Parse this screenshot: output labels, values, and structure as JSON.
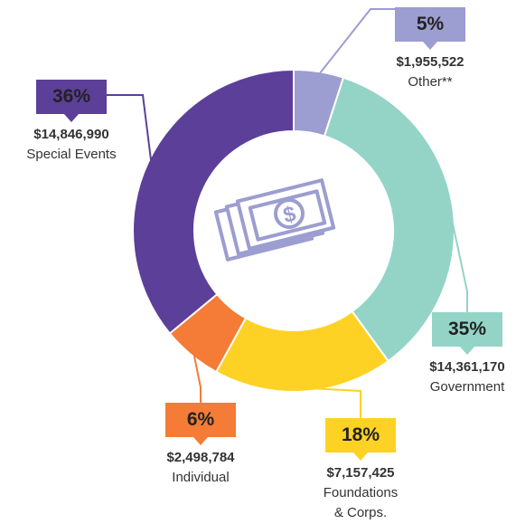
{
  "chart_data": {
    "type": "donut",
    "categories": [
      "Other**",
      "Government",
      "Foundations\n& Corps.",
      "Individual",
      "Special Events"
    ],
    "values": [
      5,
      35,
      18,
      6,
      36
    ],
    "value_labels": [
      "5%",
      "35%",
      "18%",
      "6%",
      "36%"
    ],
    "amounts": [
      "$1,955,522",
      "$14,361,170",
      "$7,157,425",
      "$2,498,784",
      "$14,846,990"
    ],
    "colors": [
      "#9c9dd0",
      "#94d4c7",
      "#fdd224",
      "#f47c36",
      "#5c3f99"
    ]
  }
}
